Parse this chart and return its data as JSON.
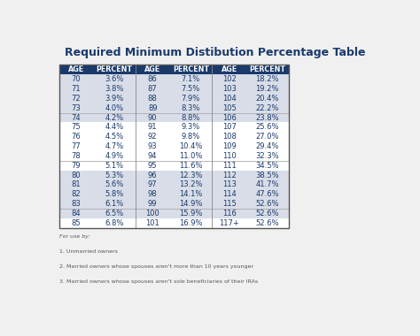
{
  "title": "Required Minimum Distibution Percentage Table",
  "title_color": "#1a3a6b",
  "header_bg": "#1a3a6b",
  "header_text_color": "#ffffff",
  "cell_text_color": "#1a3a6b",
  "background_color": "#f0f0f0",
  "col1_data": [
    [
      "70",
      "3.6%"
    ],
    [
      "71",
      "3.8%"
    ],
    [
      "72",
      "3.9%"
    ],
    [
      "73",
      "4.0%"
    ],
    [
      "74",
      "4.2%"
    ],
    [
      "75",
      "4.4%"
    ],
    [
      "76",
      "4.5%"
    ],
    [
      "77",
      "4.7%"
    ],
    [
      "78",
      "4.9%"
    ],
    [
      "79",
      "5.1%"
    ],
    [
      "80",
      "5.3%"
    ],
    [
      "81",
      "5.6%"
    ],
    [
      "82",
      "5.8%"
    ],
    [
      "83",
      "6.1%"
    ],
    [
      "84",
      "6.5%"
    ],
    [
      "85",
      "6.8%"
    ]
  ],
  "col2_data": [
    [
      "86",
      "7.1%"
    ],
    [
      "87",
      "7.5%"
    ],
    [
      "88",
      "7.9%"
    ],
    [
      "89",
      "8.3%"
    ],
    [
      "90",
      "8.8%"
    ],
    [
      "91",
      "9.3%"
    ],
    [
      "92",
      "9.8%"
    ],
    [
      "93",
      "10.4%"
    ],
    [
      "94",
      "11.0%"
    ],
    [
      "95",
      "11.6%"
    ],
    [
      "96",
      "12.3%"
    ],
    [
      "97",
      "13.2%"
    ],
    [
      "98",
      "14.1%"
    ],
    [
      "99",
      "14.9%"
    ],
    [
      "100",
      "15.9%"
    ],
    [
      "101",
      "16.9%"
    ]
  ],
  "col3_data": [
    [
      "102",
      "18.2%"
    ],
    [
      "103",
      "19.2%"
    ],
    [
      "104",
      "20.4%"
    ],
    [
      "105",
      "22.2%"
    ],
    [
      "106",
      "23.8%"
    ],
    [
      "107",
      "25.6%"
    ],
    [
      "108",
      "27.0%"
    ],
    [
      "109",
      "29.4%"
    ],
    [
      "110",
      "32.3%"
    ],
    [
      "111",
      "34.5%"
    ],
    [
      "112",
      "38.5%"
    ],
    [
      "113",
      "41.7%"
    ],
    [
      "114",
      "47.6%"
    ],
    [
      "115",
      "52.6%"
    ],
    [
      "116",
      "52.6%"
    ],
    [
      "117+",
      "52.6%"
    ]
  ],
  "footer_lines": [
    "For use by:",
    "1. Unmarried owners",
    "2. Married owners whose spouses aren't more than 10 years younger",
    "3. Married owners whose spouses aren't sole beneficiaries of their IRAs"
  ],
  "footer_color": "#555555",
  "divider_rows": [
    4,
    9,
    14
  ],
  "row_bg_colors": [
    "#d8dde8",
    "#ffffff"
  ],
  "divider_color": "#aaaaaa",
  "border_color": "#555555",
  "vert_divider_color": "#888888"
}
